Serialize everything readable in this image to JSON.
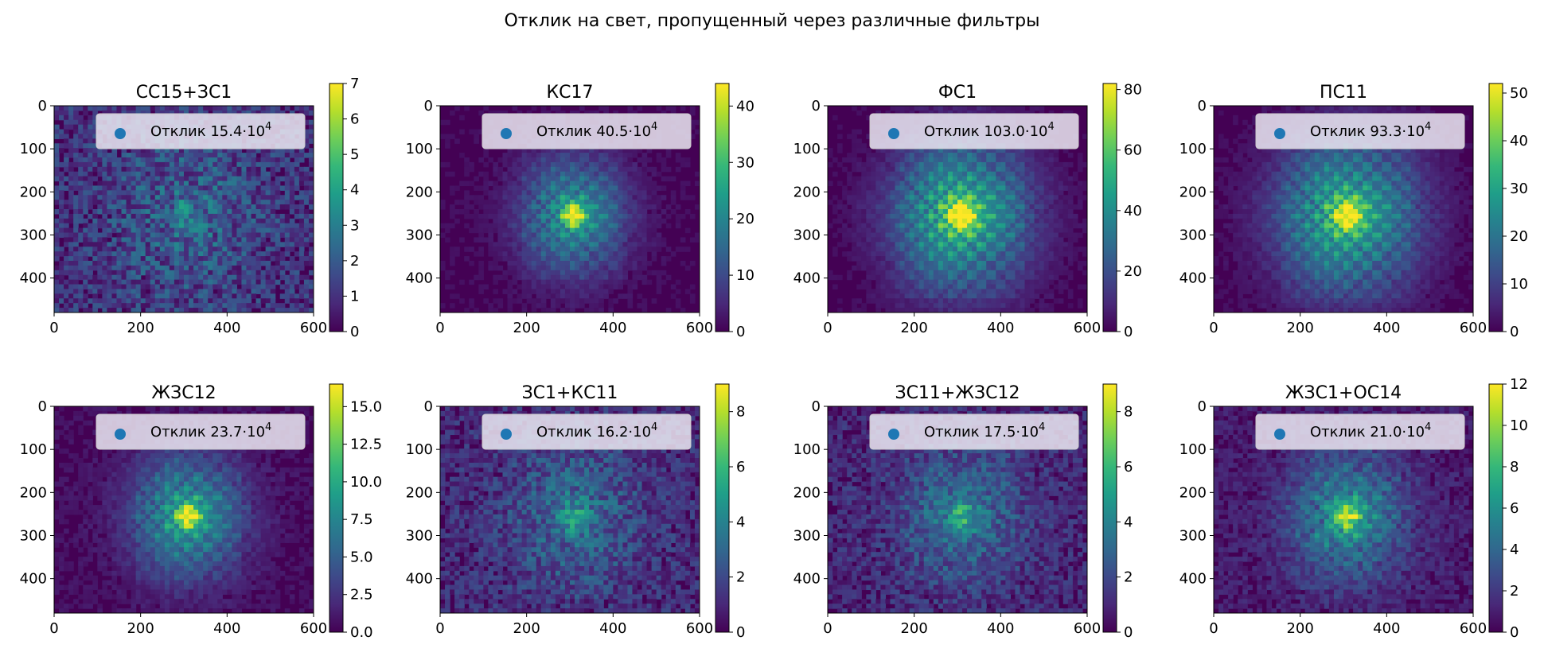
{
  "figure": {
    "suptitle": "Отклик на свет, пропущенный через различные фильтры"
  },
  "colors": {
    "viridis": [
      "#440154",
      "#482878",
      "#3e4989",
      "#31688e",
      "#26828e",
      "#1f9e89",
      "#35b779",
      "#6ece58",
      "#b5de2b",
      "#fde725"
    ],
    "legend_marker": "#1f77b4",
    "legend_bg": "#ebe7f2"
  },
  "chart_data": [
    {
      "type": "heatmap",
      "title": "СС15+ЗС1",
      "xlim": [
        0,
        600
      ],
      "ylim": [
        480,
        0
      ],
      "xticks": [
        "0",
        "200",
        "400",
        "600"
      ],
      "yticks": [
        "0",
        "100",
        "200",
        "300",
        "400"
      ],
      "colorbar": {
        "min": 0,
        "max": 7,
        "ticks": [
          "0",
          "1",
          "2",
          "3",
          "4",
          "5",
          "6",
          "7"
        ]
      },
      "peak": 2.0,
      "spot_intensity": 0.3,
      "spot_radius": 120,
      "noise": 0.55,
      "grid": false,
      "legend": {
        "label": "Отклик",
        "value": "15.4",
        "unit_base": "10",
        "unit_exp": "4"
      }
    },
    {
      "type": "heatmap",
      "title": "КС17",
      "xlim": [
        0,
        600
      ],
      "ylim": [
        480,
        0
      ],
      "xticks": [
        "0",
        "200",
        "400",
        "600"
      ],
      "yticks": [
        "0",
        "100",
        "200",
        "300",
        "400"
      ],
      "colorbar": {
        "min": 0,
        "max": 44,
        "ticks": [
          "0",
          "10",
          "20",
          "30",
          "40"
        ]
      },
      "peak": 40,
      "spot_intensity": 0.55,
      "spot_radius": 85,
      "noise": 0.1,
      "grid": true,
      "legend": {
        "label": "Отклик",
        "value": "40.5",
        "unit_base": "10",
        "unit_exp": "4"
      }
    },
    {
      "type": "heatmap",
      "title": "ФС1",
      "xlim": [
        0,
        600
      ],
      "ylim": [
        480,
        0
      ],
      "xticks": [
        "0",
        "200",
        "400",
        "600"
      ],
      "yticks": [
        "0",
        "100",
        "200",
        "300",
        "400"
      ],
      "colorbar": {
        "min": 0,
        "max": 82,
        "ticks": [
          "0",
          "20",
          "40",
          "60",
          "80"
        ]
      },
      "peak": 75,
      "spot_intensity": 0.7,
      "spot_radius": 110,
      "noise": 0.08,
      "grid": true,
      "legend": {
        "label": "Отклик",
        "value": "103.0",
        "unit_base": "10",
        "unit_exp": "4"
      }
    },
    {
      "type": "heatmap",
      "title": "ПС11",
      "xlim": [
        0,
        600
      ],
      "ylim": [
        480,
        0
      ],
      "xticks": [
        "0",
        "200",
        "400",
        "600"
      ],
      "yticks": [
        "0",
        "100",
        "200",
        "300",
        "400"
      ],
      "colorbar": {
        "min": 0,
        "max": 52,
        "ticks": [
          "0",
          "10",
          "20",
          "30",
          "40",
          "50"
        ]
      },
      "peak": 45,
      "spot_intensity": 0.7,
      "spot_radius": 115,
      "noise": 0.08,
      "grid": true,
      "legend": {
        "label": "Отклик",
        "value": "93.3",
        "unit_base": "10",
        "unit_exp": "4"
      }
    },
    {
      "type": "heatmap",
      "title": "ЖЗС12",
      "xlim": [
        0,
        600
      ],
      "ylim": [
        480,
        0
      ],
      "xticks": [
        "0",
        "200",
        "400",
        "600"
      ],
      "yticks": [
        "0",
        "100",
        "200",
        "300",
        "400"
      ],
      "colorbar": {
        "min": 0,
        "max": 16.5,
        "ticks": [
          "0.0",
          "2.5",
          "5.0",
          "7.5",
          "10.0",
          "12.5",
          "15.0"
        ]
      },
      "peak": 15,
      "spot_intensity": 0.55,
      "spot_radius": 90,
      "noise": 0.15,
      "grid": true,
      "legend": {
        "label": "Отклик",
        "value": "23.7",
        "unit_base": "10",
        "unit_exp": "4"
      }
    },
    {
      "type": "heatmap",
      "title": "ЗС1+КС11",
      "xlim": [
        0,
        600
      ],
      "ylim": [
        480,
        0
      ],
      "xticks": [
        "0",
        "200",
        "400",
        "600"
      ],
      "yticks": [
        "0",
        "100",
        "200",
        "300",
        "400"
      ],
      "colorbar": {
        "min": 0,
        "max": 9,
        "ticks": [
          "0",
          "2",
          "4",
          "6",
          "8"
        ]
      },
      "peak": 3.5,
      "spot_intensity": 0.4,
      "spot_radius": 110,
      "noise": 0.45,
      "grid": false,
      "legend": {
        "label": "Отклик",
        "value": "16.2",
        "unit_base": "10",
        "unit_exp": "4"
      }
    },
    {
      "type": "heatmap",
      "title": "ЗС11+ЖЗС12",
      "xlim": [
        0,
        600
      ],
      "ylim": [
        480,
        0
      ],
      "xticks": [
        "0",
        "200",
        "400",
        "600"
      ],
      "yticks": [
        "0",
        "100",
        "200",
        "300",
        "400"
      ],
      "colorbar": {
        "min": 0,
        "max": 9,
        "ticks": [
          "0",
          "2",
          "4",
          "6",
          "8"
        ]
      },
      "peak": 4.0,
      "spot_intensity": 0.45,
      "spot_radius": 100,
      "noise": 0.42,
      "grid": false,
      "legend": {
        "label": "Отклик",
        "value": "17.5",
        "unit_base": "10",
        "unit_exp": "4"
      }
    },
    {
      "type": "heatmap",
      "title": "ЖЗС1+ОС14",
      "xlim": [
        0,
        600
      ],
      "ylim": [
        480,
        0
      ],
      "xticks": [
        "0",
        "200",
        "400",
        "600"
      ],
      "yticks": [
        "0",
        "100",
        "200",
        "300",
        "400"
      ],
      "colorbar": {
        "min": 0,
        "max": 12,
        "ticks": [
          "0",
          "2",
          "4",
          "6",
          "8",
          "10",
          "12"
        ]
      },
      "peak": 9.5,
      "spot_intensity": 0.5,
      "spot_radius": 95,
      "noise": 0.28,
      "grid": true,
      "legend": {
        "label": "Отклик",
        "value": "21.0",
        "unit_base": "10",
        "unit_exp": "4"
      }
    }
  ]
}
